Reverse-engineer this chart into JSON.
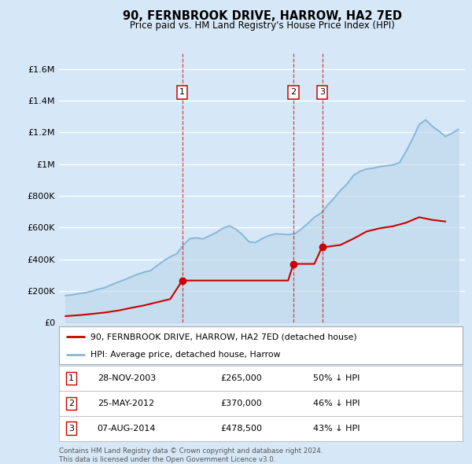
{
  "title": "90, FERNBROOK DRIVE, HARROW, HA2 7ED",
  "subtitle": "Price paid vs. HM Land Registry's House Price Index (HPI)",
  "ylim": [
    0,
    1700000
  ],
  "yticks": [
    0,
    200000,
    400000,
    600000,
    800000,
    1000000,
    1200000,
    1400000,
    1600000
  ],
  "ytick_labels": [
    "£0",
    "£200K",
    "£400K",
    "£600K",
    "£800K",
    "£1M",
    "£1.2M",
    "£1.4M",
    "£1.6M"
  ],
  "background_color": "#d6e8f7",
  "hpi_color": "#88b8d8",
  "hpi_fill_color": "#b8d4e8",
  "price_color": "#cc0000",
  "dashed_line_color": "#cc0000",
  "transactions": [
    {
      "date_num": 2003.91,
      "price": 265000,
      "label": "1"
    },
    {
      "date_num": 2012.4,
      "price": 370000,
      "label": "2"
    },
    {
      "date_num": 2014.6,
      "price": 478500,
      "label": "3"
    }
  ],
  "transaction_table": [
    {
      "num": "1",
      "date": "28-NOV-2003",
      "price": "£265,000",
      "hpi": "50% ↓ HPI"
    },
    {
      "num": "2",
      "date": "25-MAY-2012",
      "price": "£370,000",
      "hpi": "46% ↓ HPI"
    },
    {
      "num": "3",
      "date": "07-AUG-2014",
      "price": "£478,500",
      "hpi": "43% ↓ HPI"
    }
  ],
  "legend_entries": [
    {
      "label": "90, FERNBROOK DRIVE, HARROW, HA2 7ED (detached house)",
      "color": "#cc0000"
    },
    {
      "label": "HPI: Average price, detached house, Harrow",
      "color": "#88b8d8"
    }
  ],
  "footnote": "Contains HM Land Registry data © Crown copyright and database right 2024.\nThis data is licensed under the Open Government Licence v3.0.",
  "hpi_data": {
    "years": [
      1995.0,
      1995.5,
      1996.0,
      1996.5,
      1997.0,
      1997.5,
      1998.0,
      1998.5,
      1999.0,
      1999.5,
      2000.0,
      2000.5,
      2001.0,
      2001.5,
      2002.0,
      2002.5,
      2003.0,
      2003.5,
      2004.0,
      2004.5,
      2005.0,
      2005.5,
      2006.0,
      2006.5,
      2007.0,
      2007.5,
      2008.0,
      2008.5,
      2009.0,
      2009.5,
      2010.0,
      2010.5,
      2011.0,
      2011.5,
      2012.0,
      2012.5,
      2013.0,
      2013.5,
      2014.0,
      2014.5,
      2015.0,
      2015.5,
      2016.0,
      2016.5,
      2017.0,
      2017.5,
      2018.0,
      2018.5,
      2019.0,
      2019.5,
      2020.0,
      2020.5,
      2021.0,
      2021.5,
      2022.0,
      2022.5,
      2023.0,
      2023.5,
      2024.0,
      2024.5,
      2025.0
    ],
    "values": [
      170000,
      175000,
      182000,
      188000,
      198000,
      210000,
      220000,
      238000,
      255000,
      270000,
      288000,
      305000,
      318000,
      328000,
      360000,
      390000,
      415000,
      435000,
      490000,
      530000,
      535000,
      528000,
      548000,
      568000,
      595000,
      610000,
      590000,
      555000,
      510000,
      505000,
      530000,
      548000,
      560000,
      558000,
      555000,
      560000,
      590000,
      625000,
      665000,
      690000,
      740000,
      785000,
      835000,
      875000,
      930000,
      955000,
      970000,
      975000,
      985000,
      990000,
      995000,
      1010000,
      1080000,
      1160000,
      1250000,
      1280000,
      1240000,
      1210000,
      1175000,
      1195000,
      1220000
    ]
  },
  "price_data": {
    "years": [
      1995.0,
      1996.0,
      1997.0,
      1998.0,
      1999.0,
      2000.0,
      2001.0,
      2002.0,
      2003.0,
      2003.91,
      2004.0,
      2005.0,
      2006.0,
      2007.0,
      2008.0,
      2009.0,
      2010.0,
      2011.0,
      2012.0,
      2012.4,
      2013.0,
      2014.0,
      2014.6,
      2015.0,
      2016.0,
      2017.0,
      2018.0,
      2019.0,
      2020.0,
      2021.0,
      2022.0,
      2023.0,
      2024.0
    ],
    "values": [
      40000,
      46000,
      54000,
      63000,
      75000,
      92000,
      108000,
      128000,
      148000,
      265000,
      265000,
      265000,
      265000,
      265000,
      265000,
      265000,
      265000,
      265000,
      265000,
      370000,
      370000,
      370000,
      478500,
      478500,
      490000,
      530000,
      575000,
      595000,
      608000,
      630000,
      665000,
      648000,
      638000
    ]
  }
}
